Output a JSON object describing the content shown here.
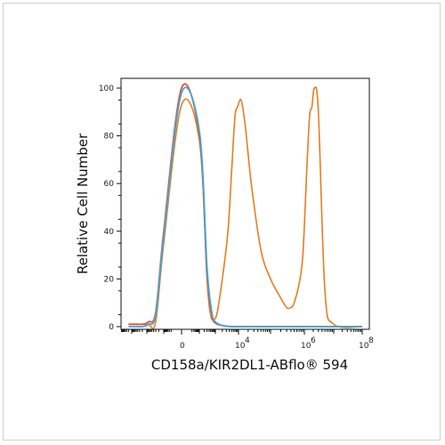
{
  "chart_data": {
    "type": "line",
    "title": "",
    "xlabel": "CD158a/KIR2DL1-ABflo® 594",
    "ylabel": "Relative Cell Number",
    "x_scale": "biexponential",
    "ylim": [
      0,
      100
    ],
    "y_ticks": [
      "0",
      "20",
      "40",
      "60",
      "80",
      "100"
    ],
    "x_ticks": [
      {
        "base": "0",
        "exp": "",
        "value": 0
      },
      {
        "base": "10",
        "exp": "4",
        "value": 10000
      },
      {
        "base": "10",
        "exp": "6",
        "value": 1000000
      },
      {
        "base": "10",
        "exp": "8",
        "value": 100000000
      }
    ],
    "grid": false,
    "legend": "none",
    "series": [
      {
        "color": "#e67e22",
        "x": [
          -20000,
          -5000,
          -2000,
          -800,
          -300,
          -100,
          0,
          100,
          300,
          500,
          800,
          1200,
          2000,
          3500,
          5000,
          7000,
          9000,
          12000,
          16000,
          25000,
          50000,
          100000,
          200000,
          300000,
          400000,
          500000,
          700000,
          900000,
          1200000,
          1500000,
          1800000,
          2200000,
          3000000,
          5000000,
          10000000,
          100000000
        ],
        "y": [
          1,
          1,
          1,
          1,
          2,
          35,
          93,
          78,
          20,
          5,
          3,
          6,
          20,
          40,
          65,
          88,
          92,
          95,
          85,
          60,
          32,
          20,
          12,
          8,
          8,
          10,
          18,
          30,
          65,
          88,
          92,
          100,
          90,
          15,
          1,
          0
        ]
      },
      {
        "color": "#e74c3c",
        "x": [
          -20000,
          -5000,
          -2000,
          -800,
          -300,
          -100,
          0,
          100,
          300,
          600,
          1000,
          2000,
          5000,
          20000,
          100000,
          1000000,
          10000000,
          100000000
        ],
        "y": [
          1,
          1,
          1,
          2,
          6,
          40,
          100,
          80,
          22,
          5,
          1.5,
          0.5,
          0,
          0,
          0,
          0,
          0,
          0
        ]
      },
      {
        "color": "#3fa9d4",
        "x": [
          -20000,
          -5000,
          -2000,
          -800,
          -300,
          -100,
          0,
          100,
          300,
          600,
          1000,
          2000,
          5000,
          20000,
          100000,
          1000000,
          10000000,
          100000000
        ],
        "y": [
          0,
          0,
          0,
          1,
          5,
          38,
          98,
          82,
          25,
          6,
          2,
          0.5,
          0,
          0,
          0,
          0,
          0,
          0
        ]
      }
    ]
  }
}
